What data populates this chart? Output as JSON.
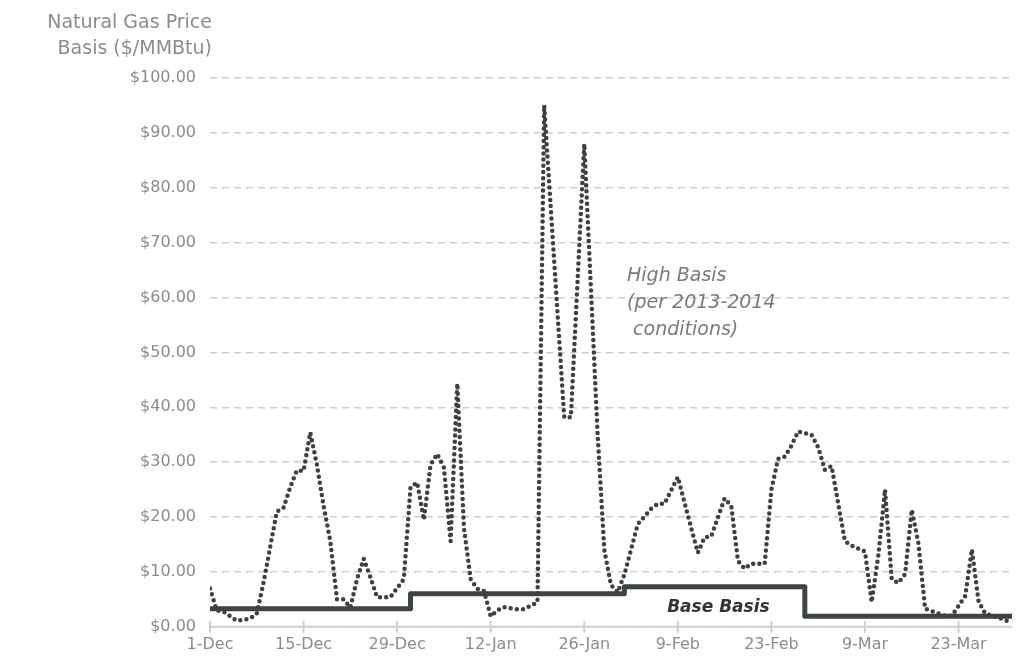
{
  "chart_data": {
    "type": "line",
    "ylabel": "Natural Gas Price\nBasis ($/MMBtu)",
    "xlim": [
      "2013-12-01",
      "2014-03-31"
    ],
    "xticks": [
      {
        "value": "2013-12-01",
        "label": "1-Dec"
      },
      {
        "value": "2013-12-15",
        "label": "15-Dec"
      },
      {
        "value": "2013-12-29",
        "label": "29-Dec"
      },
      {
        "value": "2014-01-12",
        "label": "12-Jan"
      },
      {
        "value": "2014-01-26",
        "label": "26-Jan"
      },
      {
        "value": "2014-02-09",
        "label": "9-Feb"
      },
      {
        "value": "2014-02-23",
        "label": "23-Feb"
      },
      {
        "value": "2014-03-09",
        "label": "9-Mar"
      },
      {
        "value": "2014-03-23",
        "label": "23-Mar"
      }
    ],
    "ylim": [
      0,
      100
    ],
    "yticks": [
      {
        "value": 0,
        "label": "$0.00"
      },
      {
        "value": 10,
        "label": "$10.00"
      },
      {
        "value": 20,
        "label": "$20.00"
      },
      {
        "value": 30,
        "label": "$30.00"
      },
      {
        "value": 40,
        "label": "$40.00"
      },
      {
        "value": 50,
        "label": "$50.00"
      },
      {
        "value": 60,
        "label": "$60.00"
      },
      {
        "value": 70,
        "label": "$70.00"
      },
      {
        "value": 80,
        "label": "$80.00"
      },
      {
        "value": 90,
        "label": "$90.00"
      },
      {
        "value": 100,
        "label": "$100.00"
      }
    ],
    "grid": "y",
    "legend": false,
    "marker": "none",
    "series": [
      {
        "name": "High Basis\n(per 2013-2014\n conditions)",
        "color": "#404040",
        "line_style": "dotted",
        "x": [
          "2013-12-01",
          "2013-12-02",
          "2013-12-03",
          "2013-12-05",
          "2013-12-07",
          "2013-12-08",
          "2013-12-09",
          "2013-12-11",
          "2013-12-12",
          "2013-12-13",
          "2013-12-14",
          "2013-12-15",
          "2013-12-16",
          "2013-12-17",
          "2013-12-18",
          "2013-12-19",
          "2013-12-20",
          "2013-12-21",
          "2013-12-22",
          "2013-12-23",
          "2013-12-24",
          "2013-12-25",
          "2013-12-26",
          "2013-12-28",
          "2013-12-30",
          "2013-12-31",
          "2014-01-01",
          "2014-01-02",
          "2014-01-03",
          "2014-01-04",
          "2014-01-05",
          "2014-01-06",
          "2014-01-07",
          "2014-01-08",
          "2014-01-09",
          "2014-01-10",
          "2014-01-11",
          "2014-01-12",
          "2014-01-13",
          "2014-01-14",
          "2014-01-16",
          "2014-01-17",
          "2014-01-19",
          "2014-01-20",
          "2014-01-23",
          "2014-01-24",
          "2014-01-26",
          "2014-01-28",
          "2014-01-29",
          "2014-01-30",
          "2014-01-31",
          "2014-02-01",
          "2014-02-03",
          "2014-02-05",
          "2014-02-06",
          "2014-02-07",
          "2014-02-09",
          "2014-02-11",
          "2014-02-12",
          "2014-02-13",
          "2014-02-14",
          "2014-02-16",
          "2014-02-17",
          "2014-02-18",
          "2014-02-19",
          "2014-02-20",
          "2014-02-22",
          "2014-02-23",
          "2014-02-24",
          "2014-02-25",
          "2014-02-26",
          "2014-02-27",
          "2014-03-01",
          "2014-03-02",
          "2014-03-03",
          "2014-03-04",
          "2014-03-06",
          "2014-03-07",
          "2014-03-09",
          "2014-03-10",
          "2014-03-11",
          "2014-03-12",
          "2014-03-13",
          "2014-03-14",
          "2014-03-15",
          "2014-03-16",
          "2014-03-17",
          "2014-03-18",
          "2014-03-21",
          "2014-03-22",
          "2014-03-24",
          "2014-03-25",
          "2014-03-26",
          "2014-03-27",
          "2014-03-29",
          "2014-03-31"
        ],
        "values": [
          7,
          3,
          2.8,
          1.1,
          1.5,
          2.4,
          8,
          21,
          21.7,
          25.4,
          28.5,
          28.4,
          35.4,
          29.5,
          22,
          15.6,
          5,
          5,
          3.5,
          8.7,
          12.4,
          9,
          5.4,
          5.4,
          8.7,
          25.4,
          26.3,
          19.5,
          29.5,
          31.5,
          29,
          15.6,
          44.3,
          18,
          8.7,
          6.9,
          6.5,
          1.9,
          3,
          3.6,
          3.2,
          3.2,
          4.5,
          95,
          38.2,
          38.2,
          88,
          35,
          14,
          7.6,
          6.3,
          9.5,
          18.7,
          21.5,
          22.4,
          22.4,
          27.3,
          18,
          13.5,
          16.3,
          16.5,
          23.4,
          22,
          12,
          10.6,
          11.5,
          11.5,
          25,
          30.6,
          31,
          33,
          35.6,
          35,
          32.7,
          28.6,
          29.3,
          15.6,
          14.8,
          13.7,
          4.5,
          13,
          25,
          8.7,
          8,
          9.6,
          21.3,
          15.2,
          3.3,
          2,
          2,
          5.6,
          14.1,
          4.6,
          2.4,
          1.7,
          0.7
        ]
      },
      {
        "name": "Base Basis",
        "color": "#3d4444",
        "type": "step",
        "line_style": "solid",
        "x": [
          "2013-12-01",
          "2013-12-31",
          "2014-02-01",
          "2014-02-28",
          "2014-03-31"
        ],
        "values": [
          3.3,
          6,
          7.3,
          1.9,
          1.9
        ]
      }
    ]
  }
}
